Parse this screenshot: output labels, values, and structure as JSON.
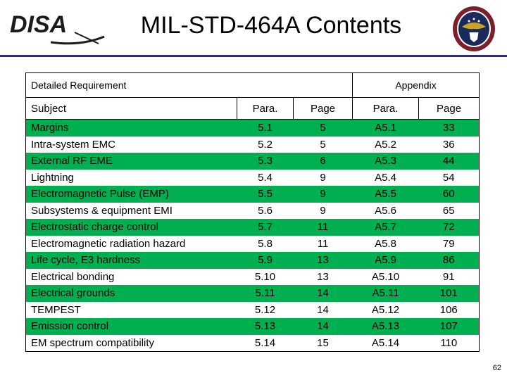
{
  "header": {
    "logo_text": "DISA",
    "title": "MIL-STD-464A Contents"
  },
  "table": {
    "group_label_left": "Detailed Requirement",
    "group_label_right": "Appendix",
    "columns": [
      "Subject",
      "Para.",
      "Page",
      "Para.",
      "Page"
    ],
    "rows": [
      {
        "subject": "Margins",
        "para": "5.1",
        "page": "5",
        "app_para": "A5.1",
        "app_page": "33",
        "band": "green"
      },
      {
        "subject": "Intra-system EMC",
        "para": "5.2",
        "page": "5",
        "app_para": "A5.2",
        "app_page": "36",
        "band": "white"
      },
      {
        "subject": "External RF EME",
        "para": "5.3",
        "page": "6",
        "app_para": "A5.3",
        "app_page": "44",
        "band": "green"
      },
      {
        "subject": "Lightning",
        "para": "5.4",
        "page": "9",
        "app_para": "A5.4",
        "app_page": "54",
        "band": "white"
      },
      {
        "subject": "Electromagnetic Pulse (EMP)",
        "para": "5.5",
        "page": "9",
        "app_para": "A5.5",
        "app_page": "60",
        "band": "green"
      },
      {
        "subject": "Subsystems & equipment EMI",
        "para": "5.6",
        "page": "9",
        "app_para": "A5.6",
        "app_page": "65",
        "band": "white"
      },
      {
        "subject": "Electrostatic charge control",
        "para": "5.7",
        "page": "11",
        "app_para": "A5.7",
        "app_page": "72",
        "band": "green"
      },
      {
        "subject": "Electromagnetic radiation hazard",
        "para": "5.8",
        "page": "11",
        "app_para": "A5.8",
        "app_page": "79",
        "band": "white"
      },
      {
        "subject": "Life cycle, E3 hardness",
        "para": "5.9",
        "page": "13",
        "app_para": "A5.9",
        "app_page": "86",
        "band": "green"
      },
      {
        "subject": "Electrical bonding",
        "para": "5.10",
        "page": "13",
        "app_para": "A5.10",
        "app_page": "91",
        "band": "white"
      },
      {
        "subject": "Electrical grounds",
        "para": "5.11",
        "page": "14",
        "app_para": "A5.11",
        "app_page": "101",
        "band": "green"
      },
      {
        "subject": "TEMPEST",
        "para": "5.12",
        "page": "14",
        "app_para": "A5.12",
        "app_page": "106",
        "band": "white"
      },
      {
        "subject": "Emission control",
        "para": "5.13",
        "page": "14",
        "app_para": "A5.13",
        "app_page": "107",
        "band": "green"
      },
      {
        "subject": "EM spectrum compatibility",
        "para": "5.14",
        "page": "15",
        "app_para": "A5.14",
        "app_page": "110",
        "band": "white"
      }
    ]
  },
  "footer": {
    "page_number": "62"
  },
  "colors": {
    "band_green": "#00b050",
    "rule_navy": "#2e2e78",
    "seal_maroon": "#7a1f2b",
    "seal_navy": "#1b2a5c"
  },
  "icons": {
    "logo": "disa-logo-icon",
    "seal": "dod-seal-icon"
  }
}
